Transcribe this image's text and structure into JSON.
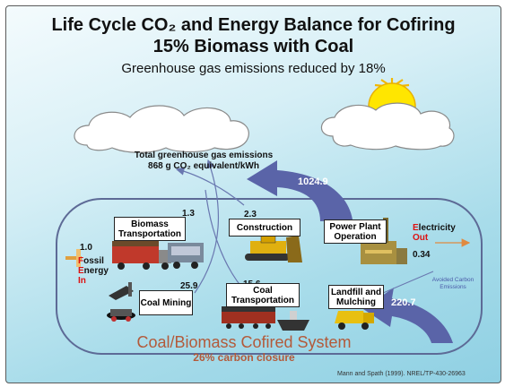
{
  "header": {
    "title_line1": "Life Cycle CO₂ and Energy Balance for Cofiring",
    "title_line2": "15% Biomass with Coal",
    "subtitle": "Greenhouse gas emissions reduced by 18%"
  },
  "emissions": {
    "line1": "Total greenhouse gas emissions",
    "line2": "868 g CO₂ equivalent/kWh"
  },
  "flows": {
    "power_plant_to_sky": "1024.9",
    "avoided_to_landfill": "220.7",
    "biomass_transport": "1.3",
    "construction": "2.3",
    "coal_mining": "25.9",
    "coal_transport": "15.6",
    "fossil_energy_in": "1.0",
    "electricity_out": "0.34"
  },
  "boxes": {
    "biomass_transportation": "Biomass Transportation",
    "construction": "Construction",
    "power_plant": "Power Plant Operation",
    "coal_mining": "Coal Mining",
    "coal_transportation": "Coal Transportation",
    "landfill": "Landfill and Mulching"
  },
  "labels": {
    "fossil_f": "F",
    "fossil_rest1": "ossil",
    "fossil_e": "E",
    "fossil_rest2": "nergy",
    "fossil_in": "In",
    "electricity_e": "E",
    "electricity_rest": "lectricity",
    "electricity_out": "Out",
    "avoided_carbon": "Avoided Carbon Emissions",
    "system": "Coal/Biomass Cofired System",
    "closure": "26% carbon closure",
    "citation": "Mann and Spath (1999). NREL/TP-430-26963"
  },
  "colors": {
    "system_label": "#b35a3a",
    "fossil_accent": "#dd1111",
    "flow_arrow": "#5a64a8",
    "thin_arrow": "#6a78b0",
    "sun": "#ffe600"
  }
}
